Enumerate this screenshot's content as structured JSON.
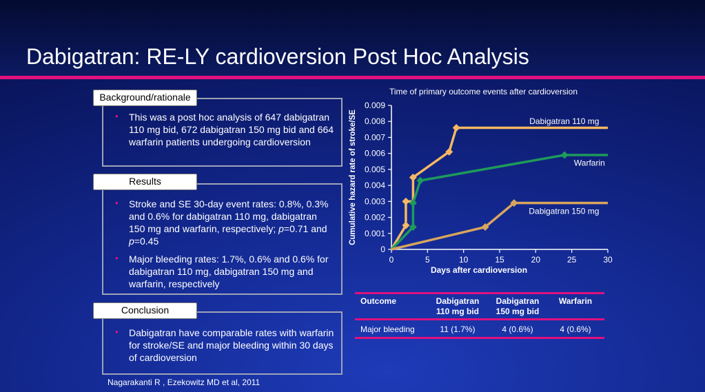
{
  "slide": {
    "title": "Dabigatran: RE-LY cardioversion Post Hoc Analysis",
    "citation": "Nagarakanti R , Ezekowitz MD  et al, 2011"
  },
  "panels": {
    "background": {
      "label": "Background/rationale",
      "bullets": [
        "This was a post hoc analysis of 647 dabigatran 110 mg bid, 672 dabigatran 150 mg bid and 664 warfarin patients undergoing cardioversion"
      ]
    },
    "results": {
      "label": "Results",
      "bullets": [
        "Stroke and SE 30-day event rates: 0.8%, 0.3% and 0.6% for dabigatran 110 mg, dabigatran 150 mg and warfarin, respectively; p=0.71 and p=0.45",
        "Major bleeding rates: 1.7%, 0.6% and 0.6% for dabigatran 110 mg, dabigatran 150 mg and warfarin, respectively"
      ]
    },
    "conclusion": {
      "label": "Conclusion",
      "bullets": [
        "Dabigatran have comparable rates with warfarin for stroke/SE and major bleeding within 30 days of cardioversion"
      ]
    }
  },
  "bullet_glyph": "•",
  "colors": {
    "accent": "#e0117f",
    "dabigatran_110": "#f5b862",
    "warfarin": "#1e9a5a",
    "dabigatran_150": "#d8a55c"
  },
  "chart_data": {
    "type": "line",
    "title": "Time of primary outcome events after cardioversion",
    "xlabel": "Days after cardioversion",
    "ylabel": "Cumulative hazard rate of stroke/SE",
    "xlim": [
      0,
      30
    ],
    "ylim": [
      0,
      0.009
    ],
    "x_ticks": [
      "0",
      "5",
      "10",
      "15",
      "20",
      "25",
      "30"
    ],
    "y_ticks": [
      "0",
      "0.001",
      "0.002",
      "0.003",
      "0.004",
      "0.005",
      "0.006",
      "0.007",
      "0.008",
      "0.009"
    ],
    "series": [
      {
        "name": "Dabigatran 110 mg",
        "points": [
          [
            0,
            0
          ],
          [
            2,
            0.0015
          ],
          [
            2,
            0.003
          ],
          [
            3,
            0.003
          ],
          [
            3,
            0.0045
          ],
          [
            8,
            0.0061
          ],
          [
            9,
            0.0076
          ],
          [
            30,
            0.0076
          ]
        ],
        "markers": [
          [
            2,
            0.0015
          ],
          [
            2,
            0.003
          ],
          [
            3,
            0.0045
          ],
          [
            8,
            0.0061
          ],
          [
            9,
            0.0076
          ]
        ]
      },
      {
        "name": "Warfarin",
        "points": [
          [
            0,
            0
          ],
          [
            3,
            0.0014
          ],
          [
            3,
            0.0029
          ],
          [
            4,
            0.0043
          ],
          [
            24,
            0.0059
          ],
          [
            30,
            0.0059
          ]
        ],
        "markers": [
          [
            3,
            0.0014
          ],
          [
            3,
            0.0029
          ],
          [
            4,
            0.0043
          ],
          [
            24,
            0.0059
          ]
        ]
      },
      {
        "name": "Dabigatran 150 mg",
        "points": [
          [
            0,
            0
          ],
          [
            13,
            0.0014
          ],
          [
            17,
            0.0029
          ],
          [
            30,
            0.0029
          ]
        ],
        "markers": [
          [
            13,
            0.0014
          ],
          [
            17,
            0.0029
          ]
        ]
      }
    ]
  },
  "table": {
    "headers": [
      "Outcome",
      "Dabigatran\n110 mg bid",
      "Dabigatran\n150 mg bid",
      "Warfarin"
    ],
    "rows": [
      [
        "Major bleeding",
        "11 (1.7%)",
        "4 (0.6%)",
        "4 (0.6%)"
      ]
    ]
  }
}
